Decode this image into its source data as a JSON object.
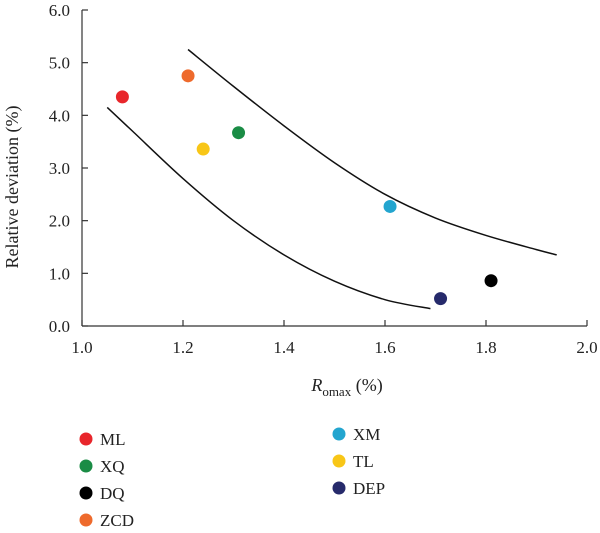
{
  "chart_data": {
    "type": "scatter",
    "xlabel": "R",
    "xlabel_subscript": "omax",
    "xlabel_unit": " (%)",
    "ylabel": "Relative deviation (%)",
    "xlim": [
      1.0,
      2.0
    ],
    "ylim": [
      0.0,
      6.0
    ],
    "xticks": [
      "1.0",
      "1.2",
      "1.4",
      "1.6",
      "1.8",
      "2.0"
    ],
    "yticks": [
      "0.0",
      "1.0",
      "2.0",
      "3.0",
      "4.0",
      "5.0",
      "6.0"
    ],
    "grid": false,
    "legend_position": "bottom",
    "points": [
      {
        "name": "ML",
        "x": 1.08,
        "y": 4.35,
        "color": "#e8262b"
      },
      {
        "name": "XQ",
        "x": 1.31,
        "y": 3.67,
        "color": "#1a8c45"
      },
      {
        "name": "DQ",
        "x": 1.81,
        "y": 0.86,
        "color": "#000000"
      },
      {
        "name": "ZCD",
        "x": 1.21,
        "y": 4.75,
        "color": "#ee6a2c"
      },
      {
        "name": "XM",
        "x": 1.61,
        "y": 2.27,
        "color": "#23a5cf"
      },
      {
        "name": "TL",
        "x": 1.24,
        "y": 3.36,
        "color": "#f8c617"
      },
      {
        "name": "DEP",
        "x": 1.71,
        "y": 0.52,
        "color": "#262a6b"
      }
    ],
    "bound_curves": [
      {
        "x": [
          1.21,
          1.3,
          1.4,
          1.5,
          1.6,
          1.7,
          1.8,
          1.9,
          1.94
        ],
        "y": [
          5.25,
          4.55,
          3.8,
          3.1,
          2.5,
          2.05,
          1.72,
          1.45,
          1.35
        ]
      },
      {
        "x": [
          1.05,
          1.1,
          1.2,
          1.3,
          1.4,
          1.5,
          1.6,
          1.69
        ],
        "y": [
          4.15,
          3.7,
          2.8,
          2.0,
          1.35,
          0.85,
          0.5,
          0.33
        ]
      }
    ]
  }
}
